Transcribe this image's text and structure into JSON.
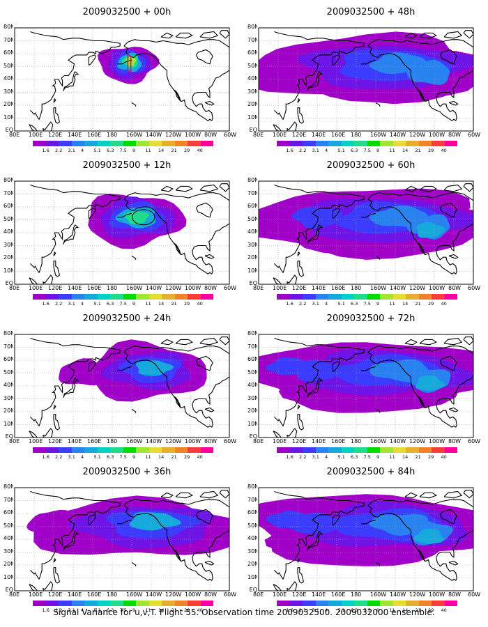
{
  "caption": "Signal Variance for u,v,T. Flight 55. Observation time 2009032500. 2009032000 ensemble.",
  "lat_labels": [
    "80N",
    "70N",
    "60N",
    "50N",
    "40N",
    "30N",
    "20N",
    "10N",
    "EQ"
  ],
  "lon_labels": [
    "80E",
    "100E",
    "120E",
    "140E",
    "160E",
    "180",
    "160W",
    "140W",
    "120W",
    "100W",
    "80W",
    "60W"
  ],
  "colorbar": {
    "levels": [
      "1.6",
      "2.2",
      "3.1",
      "4",
      "5.1",
      "6.3",
      "7.5",
      "9",
      "11",
      "14",
      "21",
      "29",
      "40"
    ],
    "colors": [
      "#a000c8",
      "#6e14e6",
      "#3c3cff",
      "#2882f0",
      "#16aadc",
      "#00d2c8",
      "#20dc8c",
      "#00dc00",
      "#a0e632",
      "#e6dc32",
      "#e6af2d",
      "#f08228",
      "#fa3c3c",
      "#ff00a0"
    ]
  },
  "panels": [
    {
      "title": "2009032500 + 00h",
      "col": 0,
      "row": 0,
      "lead_h": 0
    },
    {
      "title": "2009032500 + 12h",
      "col": 0,
      "row": 1,
      "lead_h": 12
    },
    {
      "title": "2009032500 + 24h",
      "col": 0,
      "row": 2,
      "lead_h": 24
    },
    {
      "title": "2009032500 + 36h",
      "col": 0,
      "row": 3,
      "lead_h": 36
    },
    {
      "title": "2009032500 + 48h",
      "col": 1,
      "row": 0,
      "lead_h": 48
    },
    {
      "title": "2009032500 + 60h",
      "col": 1,
      "row": 1,
      "lead_h": 60
    },
    {
      "title": "2009032500 + 72h",
      "col": 1,
      "row": 2,
      "lead_h": 72
    },
    {
      "title": "2009032500 + 84h",
      "col": 1,
      "row": 3,
      "lead_h": 84
    }
  ]
}
